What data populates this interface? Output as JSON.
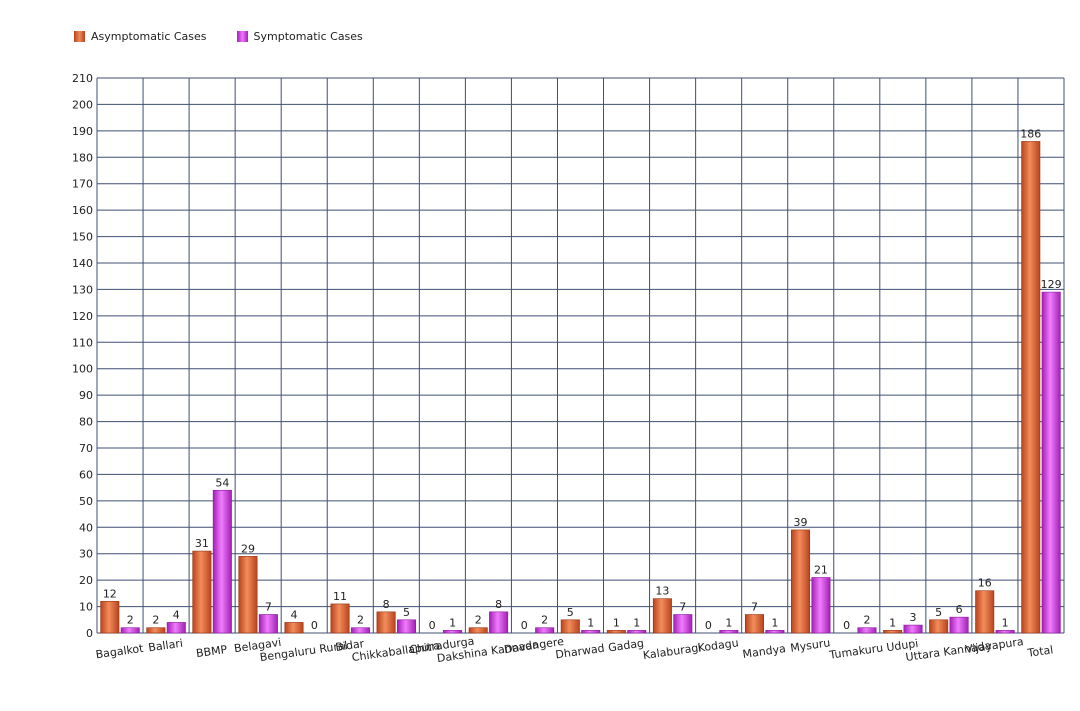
{
  "legend": {
    "asymptomatic_label": "Asymptomatic Cases",
    "symptomatic_label": "Symptomatic Cases"
  },
  "colors": {
    "asymptomatic": "#e2622f",
    "symptomatic": "#d23fe0",
    "grid": "#3f4f73"
  },
  "chart_data": {
    "type": "bar",
    "title": "",
    "xlabel": "",
    "ylabel": "",
    "ylim": [
      0,
      210
    ],
    "ytick_step": 10,
    "grid": true,
    "legend_position": "top-left",
    "categories": [
      "Bagalkot",
      "Ballari",
      "BBMP",
      "Belagavi",
      "Bengaluru Rural",
      "Bidar",
      "Chikkaballapura",
      "Chitradurga",
      "Dakshina Kannada",
      "Davangere",
      "Dharwad",
      "Gadag",
      "Kalaburagi",
      "Kodagu",
      "Mandya",
      "Mysuru",
      "Tumakuru",
      "Udupi",
      "Uttara Kannada",
      "Vijayapura",
      "Total"
    ],
    "series": [
      {
        "name": "Asymptomatic Cases",
        "values": [
          12,
          2,
          31,
          29,
          4,
          11,
          8,
          0,
          2,
          0,
          5,
          1,
          13,
          0,
          7,
          39,
          0,
          1,
          5,
          16,
          186
        ]
      },
      {
        "name": "Symptomatic Cases",
        "values": [
          2,
          4,
          54,
          7,
          0,
          2,
          5,
          1,
          8,
          2,
          1,
          1,
          7,
          1,
          1,
          21,
          2,
          3,
          6,
          1,
          129
        ]
      }
    ]
  }
}
